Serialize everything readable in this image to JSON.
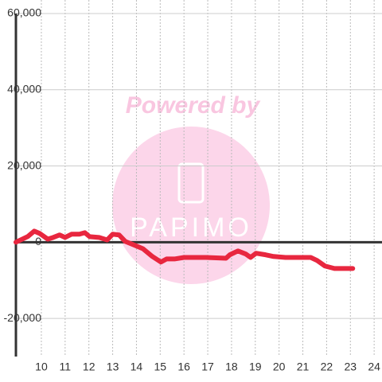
{
  "chart_data": {
    "type": "line",
    "watermark_top": "Powered by",
    "watermark_logo": "PAPIMO",
    "x": [
      8.93,
      9.43,
      9.7,
      9.93,
      10.27,
      10.5,
      10.77,
      11.0,
      11.27,
      11.6,
      11.83,
      12.03,
      12.43,
      12.77,
      13.0,
      13.27,
      13.53,
      13.93,
      14.27,
      14.67,
      15.03,
      15.27,
      15.6,
      16.0,
      16.93,
      17.77,
      17.93,
      18.27,
      18.6,
      18.8,
      19.03,
      19.43,
      19.77,
      20.27,
      21.33,
      21.6,
      21.93,
      22.33,
      23.1
    ],
    "series": [
      {
        "color": "#e8273f",
        "values": [
          0,
          1500,
          2900,
          2300,
          800,
          1250,
          1900,
          1250,
          2100,
          2100,
          2500,
          1450,
          1250,
          600,
          2100,
          1900,
          200,
          -800,
          -1700,
          -3750,
          -5200,
          -4400,
          -4400,
          -4000,
          -4000,
          -4200,
          -3300,
          -2300,
          -3100,
          -4000,
          -2900,
          -3300,
          -3750,
          -4000,
          -4000,
          -4800,
          -6250,
          -6900,
          -6900
        ]
      }
    ],
    "xlim": [
      8.93,
      24.33
    ],
    "xticks": [
      10,
      11,
      12,
      13,
      14,
      15,
      16,
      17,
      18,
      19,
      20,
      21,
      22,
      23,
      24
    ],
    "ylim": [
      -30000,
      60000
    ],
    "yticks": [
      {
        "value": -20000,
        "label": "-20,000"
      },
      0,
      {
        "value": 20000,
        "label": "20,000"
      },
      {
        "value": 40000,
        "label": "40,000"
      },
      {
        "value": 60000,
        "label": "60,000"
      }
    ],
    "grid": true
  }
}
